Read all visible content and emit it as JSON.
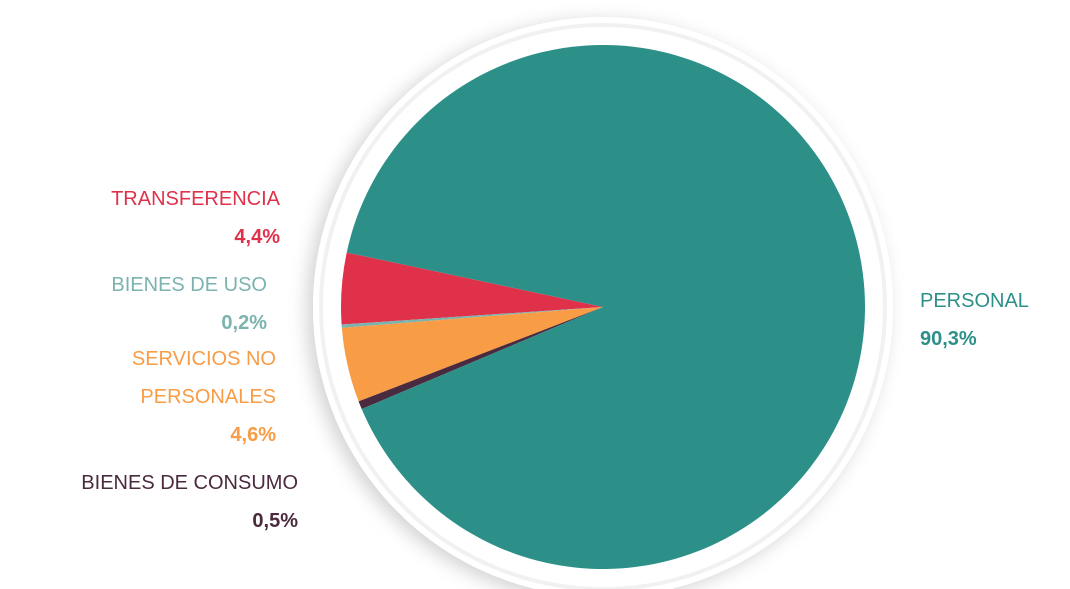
{
  "chart_data": {
    "type": "pie",
    "categories": [
      "TRANSFERENCIA",
      "BIENES DE USO",
      "SERVICIOS NO PERSONALES",
      "BIENES DE CONSUMO",
      "PERSONAL"
    ],
    "values": [
      4.4,
      0.2,
      4.6,
      0.5,
      90.3
    ],
    "value_labels": [
      "4,4%",
      "0,2%",
      "4,6%",
      "0,5%",
      "90,3%"
    ],
    "colors": [
      "#e0314b",
      "#7bb3ae",
      "#f89c46",
      "#4a2a3e",
      "#2c9089"
    ]
  }
}
